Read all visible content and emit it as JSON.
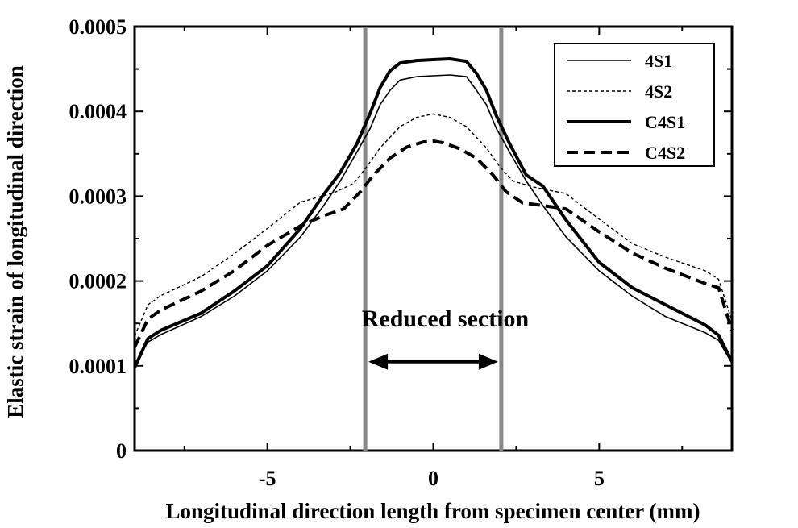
{
  "chart_data": {
    "type": "line",
    "title": "",
    "xlabel": "Longitudinal direction length from specimen center (mm)",
    "ylabel": "Elastic strain of longitudinal direction",
    "xlim": [
      -9,
      9
    ],
    "ylim": [
      0,
      0.0005
    ],
    "x_ticks": [
      -5,
      0,
      5
    ],
    "x_tick_labels": [
      "-5",
      "0",
      "5"
    ],
    "y_ticks": [
      0,
      0.0001,
      0.0002,
      0.0003,
      0.0004,
      0.0005
    ],
    "y_tick_labels": [
      "0",
      "0.0001",
      "0.0002",
      "0.0003",
      "0.0004",
      "0.0005"
    ],
    "grid": false,
    "legend_position": "top-right",
    "reference_lines_x": [
      -2.05,
      2.05
    ],
    "annotation": {
      "text": "Reduced section",
      "arrow_from_x": -2.05,
      "arrow_to_x": 2.05,
      "arrow_y": 0.0001,
      "text_y": 0.000152
    },
    "series": [
      {
        "name": "4S1",
        "style": "thin-solid",
        "color": "#000000",
        "x": [
          -9,
          -8.6,
          -8.2,
          -7,
          -6,
          -5,
          -4,
          -3.3,
          -2.8,
          -2.3,
          -1.9,
          -1.6,
          -1.3,
          -1,
          -0.5,
          0,
          0.5,
          1,
          1.3,
          1.6,
          1.9,
          2.3,
          2.8,
          3.3,
          4,
          5,
          6,
          7,
          8.2,
          8.6,
          9
        ],
        "y": [
          0.000102,
          0.000128,
          0.000137,
          0.000158,
          0.000182,
          0.000212,
          0.000252,
          0.000289,
          0.000318,
          0.000352,
          0.00038,
          0.000408,
          0.000425,
          0.000437,
          0.000441,
          0.000442,
          0.000443,
          0.000441,
          0.000425,
          0.000408,
          0.00038,
          0.000352,
          0.000318,
          0.000289,
          0.000252,
          0.000212,
          0.000182,
          0.000158,
          0.000139,
          0.00013,
          0.000103
        ]
      },
      {
        "name": "4S2",
        "style": "thin-dashed",
        "color": "#000000",
        "x": [
          -9,
          -8.6,
          -8.2,
          -7,
          -6,
          -5,
          -4,
          -3,
          -2.4,
          -2,
          -1.6,
          -1,
          -0.5,
          0,
          0.5,
          1,
          1.6,
          2,
          2.4,
          3,
          4,
          5,
          6,
          7,
          8.2,
          8.6,
          9
        ],
        "y": [
          0.000135,
          0.000172,
          0.000183,
          0.000205,
          0.000232,
          0.000262,
          0.000293,
          0.000304,
          0.000315,
          0.000335,
          0.000357,
          0.000382,
          0.000393,
          0.000397,
          0.000393,
          0.000382,
          0.000357,
          0.000335,
          0.000318,
          0.000311,
          0.000303,
          0.000273,
          0.000244,
          0.000228,
          0.000212,
          0.000202,
          0.000153
        ]
      },
      {
        "name": "C4S1",
        "style": "thick-solid",
        "color": "#000000",
        "x": [
          -9,
          -8.6,
          -8.2,
          -7,
          -6,
          -5,
          -4,
          -3.3,
          -2.8,
          -2.3,
          -1.9,
          -1.6,
          -1.3,
          -1,
          -0.5,
          0,
          0.5,
          1,
          1.3,
          1.6,
          1.9,
          2.3,
          2.8,
          3.3,
          4,
          5,
          6,
          7,
          8.2,
          8.6,
          9
        ],
        "y": [
          9.8e-05,
          0.000132,
          0.000142,
          0.000162,
          0.000188,
          0.000218,
          0.000262,
          0.000302,
          0.000328,
          0.000362,
          0.000398,
          0.000428,
          0.000448,
          0.000457,
          0.00046,
          0.000461,
          0.000462,
          0.000459,
          0.000445,
          0.000425,
          0.000395,
          0.000362,
          0.000325,
          0.000312,
          0.000272,
          0.000222,
          0.000192,
          0.000172,
          0.000148,
          0.000136,
          0.000105
        ]
      },
      {
        "name": "C4S2",
        "style": "thick-dashed",
        "color": "#000000",
        "x": [
          -9,
          -8.6,
          -8.2,
          -7,
          -6,
          -5,
          -4,
          -3.3,
          -2.7,
          -2.2,
          -1.8,
          -1.3,
          -0.8,
          -0.3,
          0,
          0.3,
          0.8,
          1.3,
          1.8,
          2.2,
          2.7,
          3.3,
          4,
          5,
          6,
          7,
          8.2,
          8.6,
          9
        ],
        "y": [
          0.000122,
          0.000155,
          0.000166,
          0.000188,
          0.000212,
          0.000242,
          0.000265,
          0.000277,
          0.000285,
          0.000305,
          0.000325,
          0.000345,
          0.000358,
          0.000364,
          0.000365,
          0.000363,
          0.000356,
          0.000345,
          0.000325,
          0.000305,
          0.000292,
          0.000289,
          0.000285,
          0.000258,
          0.000233,
          0.000215,
          0.000197,
          0.000192,
          0.000142
        ]
      }
    ]
  }
}
